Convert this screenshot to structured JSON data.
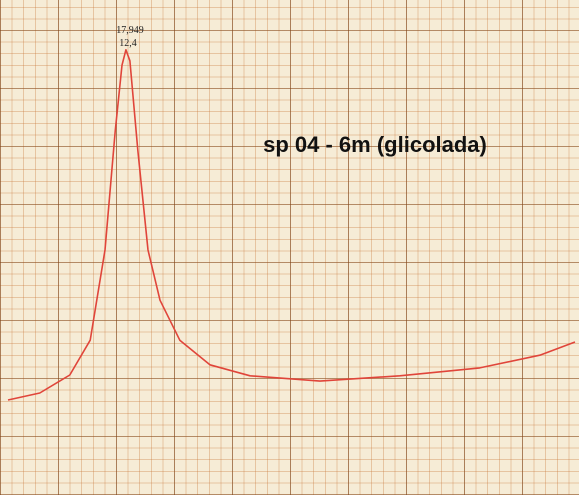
{
  "chart_data": {
    "type": "line",
    "title": "sp 04 - 6m (glicolada)",
    "annotations": [
      "17,949",
      "12,4"
    ],
    "x": [
      0,
      5.6,
      10.9,
      14.5,
      17.1,
      18.9,
      20.1,
      20.8,
      21.5,
      22.9,
      24.7,
      26.8,
      30.3,
      35.6,
      42.7,
      55,
      69.1,
      83.2,
      93.8,
      100
    ],
    "series": [
      {
        "color": "#e0453a",
        "values": [
          15.9,
          17.5,
          21.6,
          29.5,
          50,
          77,
          92,
          95.5,
          93,
          72.7,
          50,
          38.6,
          29.5,
          23.9,
          21.4,
          20.2,
          21.4,
          23.2,
          26.1,
          29.1
        ]
      }
    ],
    "xlim": [
      0,
      100
    ],
    "ylim": [
      0,
      100
    ]
  }
}
